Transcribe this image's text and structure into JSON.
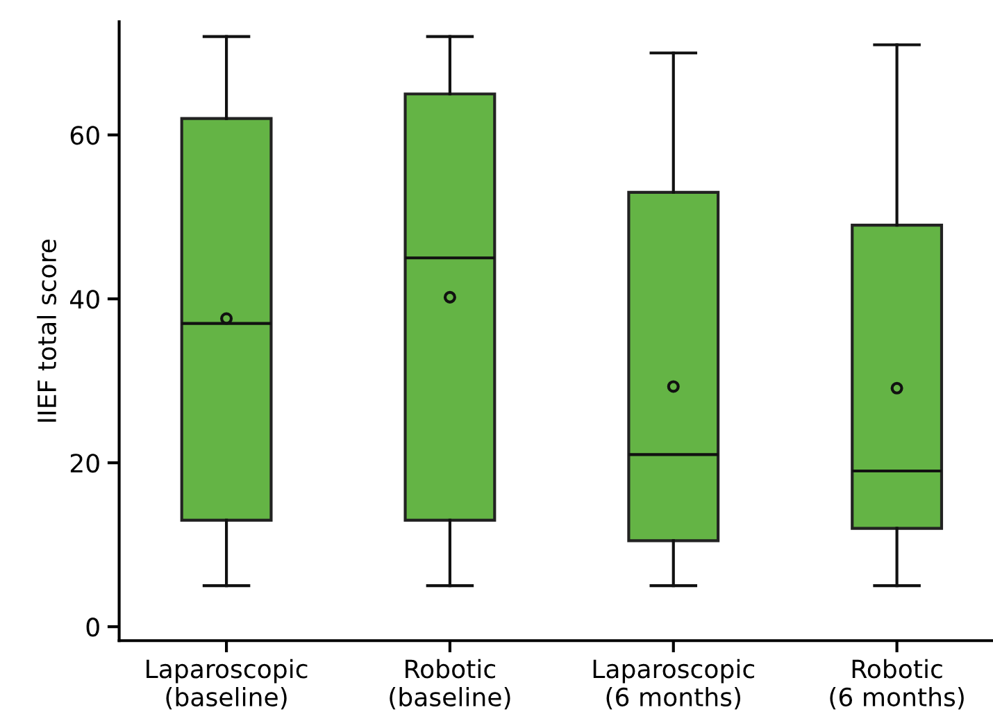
{
  "chart_data": {
    "type": "box",
    "ylabel": "IIEF total score",
    "categories": [
      "Laparoscopic\n(baseline)",
      "Robotic\n(baseline)",
      "Laparoscopic\n(6 months)",
      "Robotic\n(6 months)"
    ],
    "series": [
      {
        "color": "#64b445",
        "boxes": [
          {
            "low": 5,
            "q1": 13,
            "median": 37,
            "q3": 62,
            "high": 72,
            "mean": 37.6
          },
          {
            "low": 5,
            "q1": 13,
            "median": 45,
            "q3": 65,
            "high": 72,
            "mean": 40.2
          },
          {
            "low": 5,
            "q1": 10.5,
            "median": 21,
            "q3": 53,
            "high": 70,
            "mean": 29.3
          },
          {
            "low": 5,
            "q1": 12,
            "median": 19,
            "q3": 49,
            "high": 71,
            "mean": 29.1
          }
        ]
      }
    ],
    "ylim": [
      -1.7,
      73.8
    ],
    "yticks": [
      0,
      20,
      40,
      60
    ],
    "grid": false,
    "legend": false
  }
}
